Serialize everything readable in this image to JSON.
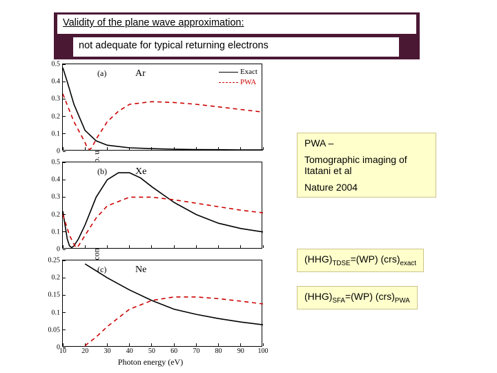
{
  "header": {
    "title": "Validity of the plane wave approximation:",
    "subtitle": "not adequate for typical returning electrons"
  },
  "chart": {
    "ylabel": "Photo recombination cross section (arb. unit)",
    "xlabel": "Photon energy (eV)",
    "xlim": [
      10,
      100
    ],
    "xticks": [
      10,
      20,
      30,
      40,
      50,
      60,
      70,
      80,
      90,
      100
    ],
    "legend": {
      "exact": "Exact",
      "pwa": "PWA"
    },
    "exact_color": "#000000",
    "pwa_color": "#cc0000",
    "line_width": 1.6,
    "panels": [
      {
        "tag": "(a)",
        "species": "Ar",
        "ylim": [
          0,
          0.5
        ],
        "yticks": [
          0,
          0.1,
          0.2,
          0.3,
          0.4,
          0.5
        ],
        "exact": [
          [
            10,
            0.48
          ],
          [
            12,
            0.4
          ],
          [
            15,
            0.27
          ],
          [
            20,
            0.12
          ],
          [
            25,
            0.06
          ],
          [
            30,
            0.035
          ],
          [
            40,
            0.02
          ],
          [
            50,
            0.015
          ],
          [
            60,
            0.012
          ],
          [
            70,
            0.01
          ],
          [
            80,
            0.009
          ],
          [
            90,
            0.008
          ],
          [
            100,
            0.008
          ]
        ],
        "pwa": [
          [
            10,
            0.33
          ],
          [
            15,
            0.17
          ],
          [
            20,
            0.05
          ],
          [
            21,
            0.02
          ],
          [
            22,
            0.01
          ],
          [
            23,
            0.02
          ],
          [
            25,
            0.07
          ],
          [
            30,
            0.17
          ],
          [
            35,
            0.23
          ],
          [
            40,
            0.27
          ],
          [
            50,
            0.285
          ],
          [
            60,
            0.28
          ],
          [
            70,
            0.27
          ],
          [
            80,
            0.255
          ],
          [
            90,
            0.24
          ],
          [
            100,
            0.225
          ]
        ]
      },
      {
        "tag": "(b)",
        "species": "Xe",
        "ylim": [
          0,
          0.5
        ],
        "yticks": [
          0,
          0.1,
          0.2,
          0.3,
          0.4,
          0.5
        ],
        "exact": [
          [
            10,
            0.22
          ],
          [
            12,
            0.06
          ],
          [
            13,
            0.02
          ],
          [
            14,
            0.01
          ],
          [
            15,
            0.02
          ],
          [
            17,
            0.06
          ],
          [
            20,
            0.14
          ],
          [
            25,
            0.3
          ],
          [
            30,
            0.4
          ],
          [
            35,
            0.44
          ],
          [
            40,
            0.44
          ],
          [
            45,
            0.41
          ],
          [
            50,
            0.36
          ],
          [
            60,
            0.27
          ],
          [
            70,
            0.2
          ],
          [
            80,
            0.15
          ],
          [
            90,
            0.12
          ],
          [
            100,
            0.1
          ]
        ],
        "pwa": [
          [
            10,
            0.2
          ],
          [
            13,
            0.08
          ],
          [
            15,
            0.03
          ],
          [
            16,
            0.01
          ],
          [
            17,
            0.02
          ],
          [
            20,
            0.08
          ],
          [
            25,
            0.18
          ],
          [
            30,
            0.25
          ],
          [
            40,
            0.3
          ],
          [
            50,
            0.3
          ],
          [
            60,
            0.285
          ],
          [
            70,
            0.265
          ],
          [
            80,
            0.245
          ],
          [
            90,
            0.225
          ],
          [
            100,
            0.21
          ]
        ]
      },
      {
        "tag": "(c)",
        "species": "Ne",
        "ylim": [
          0,
          0.25
        ],
        "yticks": [
          0,
          0.05,
          0.1,
          0.15,
          0.2,
          0.25
        ],
        "exact": [
          [
            20,
            0.24
          ],
          [
            25,
            0.22
          ],
          [
            30,
            0.2
          ],
          [
            40,
            0.165
          ],
          [
            50,
            0.135
          ],
          [
            60,
            0.11
          ],
          [
            70,
            0.095
          ],
          [
            80,
            0.083
          ],
          [
            90,
            0.073
          ],
          [
            100,
            0.065
          ]
        ],
        "pwa": [
          [
            20,
            0.005
          ],
          [
            25,
            0.03
          ],
          [
            30,
            0.06
          ],
          [
            40,
            0.11
          ],
          [
            50,
            0.135
          ],
          [
            60,
            0.145
          ],
          [
            70,
            0.145
          ],
          [
            80,
            0.14
          ],
          [
            90,
            0.133
          ],
          [
            100,
            0.125
          ]
        ]
      }
    ]
  },
  "notes": {
    "pwa_note_l1": "PWA –",
    "pwa_note_l2": "Tomographic imaging of Itatani et al",
    "pwa_note_l3": "Nature 2004"
  },
  "equations": {
    "eq1": {
      "lhs_base": "(HHG)",
      "lhs_sub": "TDSE",
      "mid": "=(WP) (crs)",
      "rhs_sub": "exact"
    },
    "eq2": {
      "lhs_base": "(HHG)",
      "lhs_sub": "SFA",
      "mid": "=(WP) (crs)",
      "rhs_sub": "PWA"
    }
  }
}
